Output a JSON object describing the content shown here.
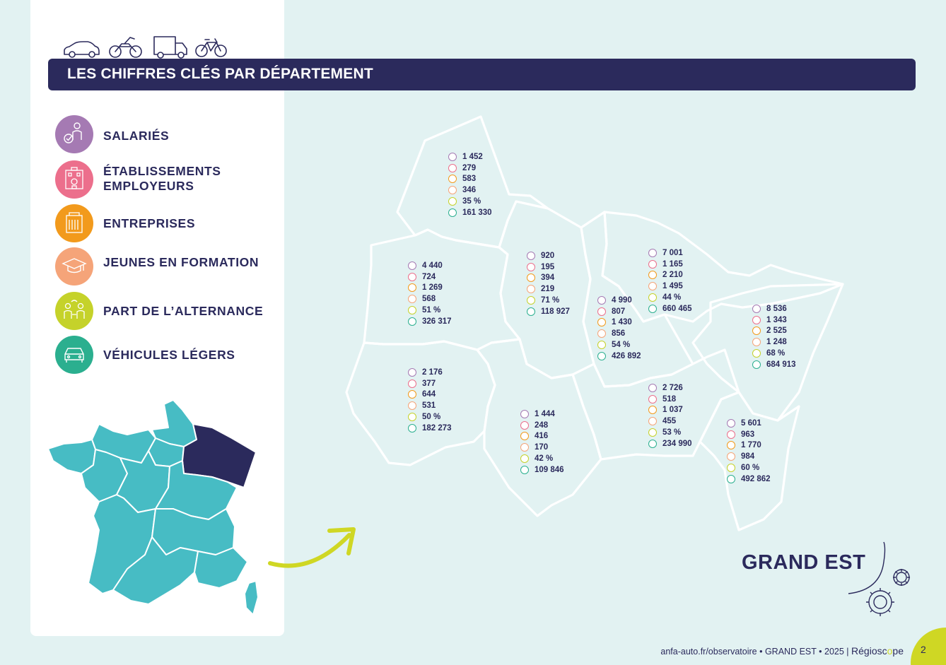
{
  "title": "LES CHIFFRES CLÉS PAR DÉPARTEMENT",
  "vehicle_icons": [
    "car-icon",
    "motorcycle-icon",
    "truck-icon",
    "bicycle-icon"
  ],
  "legend": [
    {
      "key": "salaries",
      "label_lines": [
        "SALARIÉS"
      ],
      "color": "#a57ab3",
      "icon": "employee-icon"
    },
    {
      "key": "etablissements",
      "label_lines": [
        "ÉTABLISSEMENTS",
        "EMPLOYEURS"
      ],
      "color": "#ec6f8c",
      "icon": "building-icon"
    },
    {
      "key": "entreprises",
      "label_lines": [
        "ENTREPRISES"
      ],
      "color": "#f29a1c",
      "icon": "office-icon"
    },
    {
      "key": "jeunes",
      "label_lines": [
        "JEUNES EN FORMATION"
      ],
      "color": "#f5a479",
      "icon": "graduation-cap-icon"
    },
    {
      "key": "alternance",
      "label_lines": [
        "PART DE L’ALTERNANCE"
      ],
      "color": "#c5d22a",
      "icon": "people-exchange-icon"
    },
    {
      "key": "vehicules",
      "label_lines": [
        "VÉHICULES LÉGERS"
      ],
      "color": "#2baf8f",
      "icon": "car-front-icon"
    }
  ],
  "departments": [
    {
      "id": "ardennes",
      "values": [
        "1 452",
        "279",
        "583",
        "346",
        "35 %",
        "161 330"
      ]
    },
    {
      "id": "marne",
      "values": [
        "4 440",
        "724",
        "1 269",
        "568",
        "51 %",
        "326 317"
      ]
    },
    {
      "id": "meuse",
      "values": [
        "920",
        "195",
        "394",
        "219",
        "71 %",
        "118 927"
      ]
    },
    {
      "id": "meurthe-et-moselle",
      "values": [
        "4 990",
        "807",
        "1 430",
        "856",
        "54 %",
        "426 892"
      ]
    },
    {
      "id": "moselle",
      "values": [
        "7 001",
        "1 165",
        "2 210",
        "1 495",
        "44 %",
        "660 465"
      ]
    },
    {
      "id": "bas-rhin",
      "values": [
        "8 536",
        "1 343",
        "2 525",
        "1 248",
        "68 %",
        "684 913"
      ]
    },
    {
      "id": "aube",
      "values": [
        "2 176",
        "377",
        "644",
        "531",
        "50 %",
        "182 273"
      ]
    },
    {
      "id": "haute-marne",
      "values": [
        "1 444",
        "248",
        "416",
        "170",
        "42 %",
        "109 846"
      ]
    },
    {
      "id": "vosges",
      "values": [
        "2 726",
        "518",
        "1 037",
        "455",
        "53 %",
        "234 990"
      ]
    },
    {
      "id": "haut-rhin",
      "values": [
        "5 601",
        "963",
        "1 770",
        "984",
        "60 %",
        "492 862"
      ]
    }
  ],
  "region": "GRAND EST",
  "footer": {
    "url": "anfa-auto.fr/observatoire",
    "region": "GRAND EST",
    "year": "2025",
    "brand_pre": "Régiosc",
    "brand_o": "o",
    "brand_post": "pe",
    "page": "2"
  },
  "colors": {
    "navy": "#2b2a5c",
    "teal_map": "#47bcc4",
    "highlight": "#2b2a5c",
    "arrow": "#cfd724",
    "background": "#e2f2f2"
  }
}
